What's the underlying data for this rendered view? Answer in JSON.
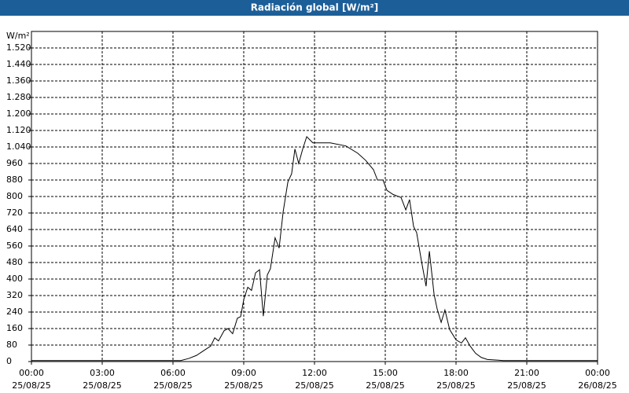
{
  "chart_data": {
    "type": "line",
    "title": "Radiación global [W/m²]",
    "y_unit": "W/m²",
    "x": [
      0,
      6.33,
      6.67,
      7.0,
      7.33,
      7.6,
      7.77,
      7.93,
      8.17,
      8.33,
      8.53,
      8.73,
      8.87,
      9.0,
      9.17,
      9.33,
      9.5,
      9.67,
      9.83,
      10.0,
      10.13,
      10.33,
      10.5,
      10.67,
      10.87,
      11.03,
      11.17,
      11.33,
      11.5,
      11.67,
      11.93,
      12.67,
      13.33,
      13.83,
      14.17,
      14.5,
      14.67,
      14.9,
      15.07,
      15.33,
      15.67,
      15.87,
      16.03,
      16.2,
      16.33,
      16.53,
      16.73,
      16.87,
      17.07,
      17.2,
      17.37,
      17.53,
      17.73,
      18.0,
      18.23,
      18.4,
      18.6,
      18.83,
      19.07,
      19.33,
      20,
      24
    ],
    "series": [
      {
        "name": "Radiación global",
        "color": "#000000",
        "values": [
          5,
          5,
          15,
          30,
          55,
          75,
          115,
          100,
          150,
          160,
          135,
          210,
          218,
          300,
          360,
          345,
          430,
          445,
          220,
          420,
          450,
          600,
          550,
          725,
          870,
          910,
          1030,
          960,
          1030,
          1090,
          1060,
          1060,
          1045,
          1010,
          975,
          930,
          880,
          880,
          830,
          810,
          795,
          735,
          785,
          655,
          625,
          490,
          365,
          535,
          325,
          255,
          190,
          250,
          155,
          105,
          90,
          115,
          75,
          40,
          20,
          10,
          5,
          5
        ]
      }
    ],
    "xlim": [
      0,
      24
    ],
    "xticks": [
      {
        "value": 0,
        "label": "00:00"
      },
      {
        "value": 3,
        "label": "03:00"
      },
      {
        "value": 6,
        "label": "06:00"
      },
      {
        "value": 9,
        "label": "09:00"
      },
      {
        "value": 12,
        "label": "12:00"
      },
      {
        "value": 15,
        "label": "15:00"
      },
      {
        "value": 18,
        "label": "18:00"
      },
      {
        "value": 21,
        "label": "21:00"
      },
      {
        "value": 24,
        "label": "00:00"
      }
    ],
    "xtick_dates": [
      "25/08/25",
      "25/08/25",
      "25/08/25",
      "25/08/25",
      "25/08/25",
      "25/08/25",
      "25/08/25",
      "25/08/25",
      "26/08/25"
    ],
    "ylim": [
      0,
      1600
    ],
    "yticks": [
      0,
      80,
      160,
      240,
      320,
      400,
      480,
      560,
      640,
      720,
      800,
      880,
      960,
      {
        "value": 1040,
        "label": "1.040"
      },
      {
        "value": 1120,
        "label": "1.120"
      },
      {
        "value": 1200,
        "label": "1.200"
      },
      {
        "value": 1280,
        "label": "1.280"
      },
      {
        "value": 1360,
        "label": "1.360"
      },
      {
        "value": 1440,
        "label": "1.440"
      },
      {
        "value": 1520,
        "label": "1.520"
      }
    ],
    "grid": true
  }
}
